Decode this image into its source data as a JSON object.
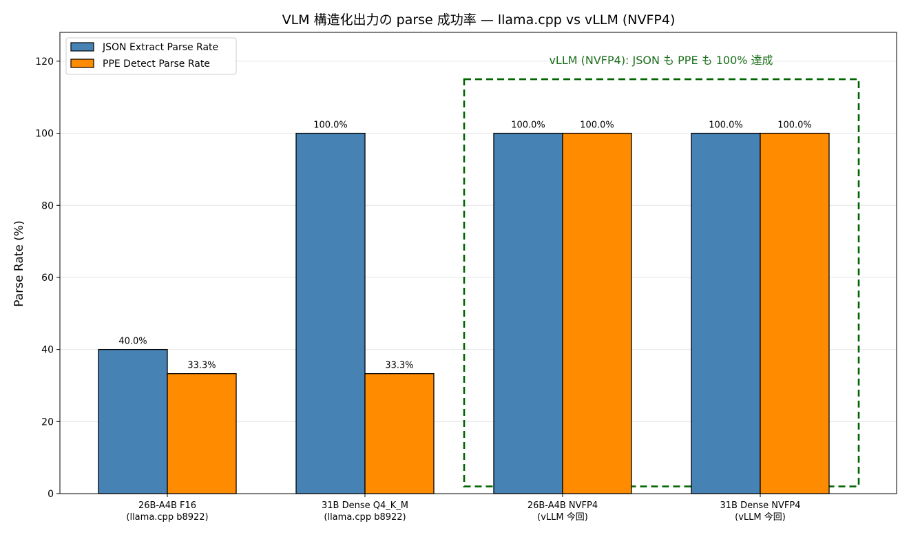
{
  "chart_data": {
    "type": "bar",
    "title": "VLM 構造化出力の parse 成功率 — llama.cpp vs vLLM (NVFP4)",
    "xlabel": "",
    "ylabel": "Parse Rate (%)",
    "ylim": [
      0,
      128
    ],
    "yticks": [
      0,
      20,
      40,
      60,
      80,
      100,
      120
    ],
    "grid": true,
    "legend_position": "top-left",
    "categories": [
      [
        "26B-A4B F16",
        "(llama.cpp b8922)"
      ],
      [
        "31B Dense Q4_K_M",
        "(llama.cpp b8922)"
      ],
      [
        "26B-A4B NVFP4",
        "(vLLM 今回)"
      ],
      [
        "31B Dense NVFP4",
        "(vLLM 今回)"
      ]
    ],
    "series": [
      {
        "name": "JSON Extract Parse Rate",
        "color": "#4682b4",
        "values": [
          40.0,
          100.0,
          100.0,
          100.0
        ],
        "labels": [
          "40.0%",
          "100.0%",
          "100.0%",
          "100.0%"
        ]
      },
      {
        "name": "PPE Detect Parse Rate",
        "color": "#ff8c00",
        "values": [
          33.3,
          33.3,
          100.0,
          100.0
        ],
        "labels": [
          "33.3%",
          "33.3%",
          "100.0%",
          "100.0%"
        ]
      }
    ],
    "annotation": {
      "text": "vLLM (NVFP4): JSON も PPE も 100% 達成",
      "color": "#1a6e1a",
      "box_color": "#006400",
      "box_categories": [
        2,
        3
      ],
      "box_y_range": [
        2,
        115
      ]
    }
  }
}
